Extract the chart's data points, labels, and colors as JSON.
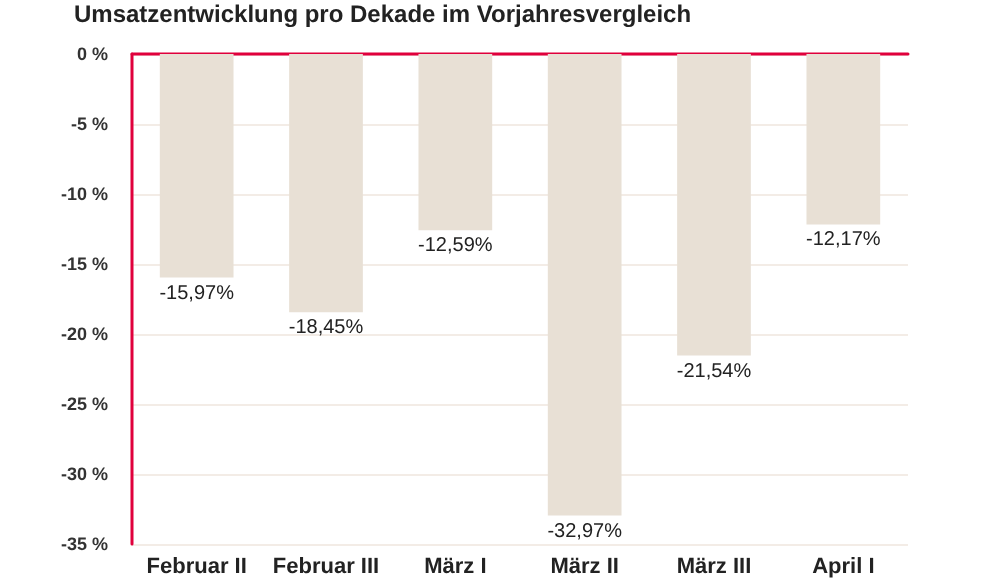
{
  "chart_data": {
    "type": "bar",
    "title": "Umsatzentwicklung pro Dekade im Vorjahresvergleich",
    "categories": [
      "Februar II",
      "Februar III",
      "März I",
      "März II",
      "März III",
      "April I"
    ],
    "values": [
      -15.97,
      -18.45,
      -12.59,
      -32.97,
      -21.54,
      -12.17
    ],
    "value_labels": [
      "-15,97%",
      "-18,45%",
      "-12,59%",
      "-32,97%",
      "-21,54%",
      "-12,17%"
    ],
    "color": "#e8e0d5",
    "ylim": [
      -35,
      0
    ],
    "yticks": [
      {
        "value": 0,
        "label": "0 %"
      },
      {
        "value": -5,
        "label": "-5 %"
      },
      {
        "value": -10,
        "label": "-10 %"
      },
      {
        "value": -15,
        "label": "-15 %"
      },
      {
        "value": -20,
        "label": "-20 %"
      },
      {
        "value": -25,
        "label": "-25 %"
      },
      {
        "value": -30,
        "label": "-30 %"
      },
      {
        "value": -35,
        "label": "-35 %"
      }
    ],
    "grid": "y"
  }
}
